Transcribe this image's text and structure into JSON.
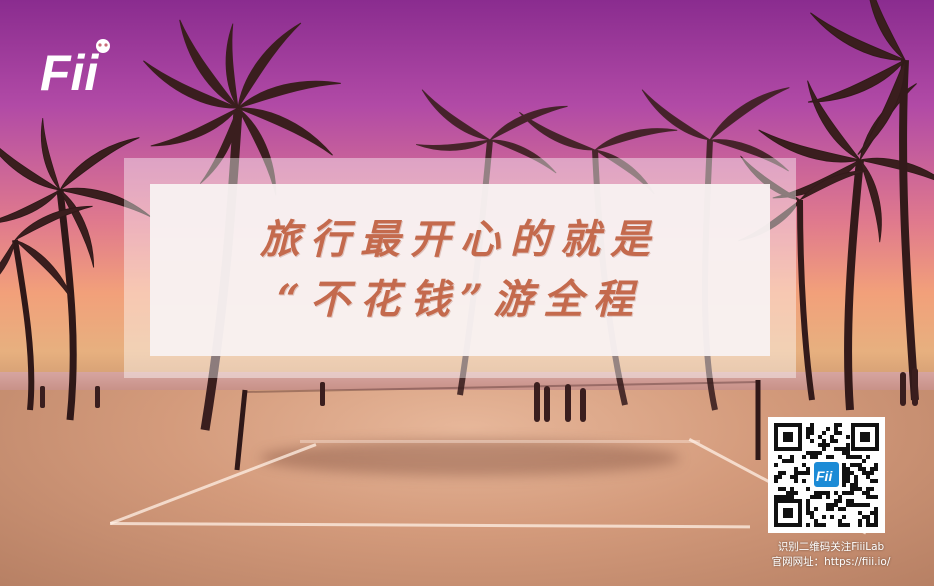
{
  "brand": {
    "logo_text": "Fii"
  },
  "headline": {
    "line1": "旅行最开心的就是",
    "line2": "“不花钱”游全程"
  },
  "qr": {
    "center_logo_text": "Fii",
    "caption_line1": "识别二维码关注FiiiLab",
    "caption_line2": "官网网址：https://fiii.io/"
  },
  "colors": {
    "headline_text": "#c46a4d",
    "sky_top": "#8a2c8f",
    "sky_horizon": "#f2a07a",
    "sand": "#d49b7c"
  }
}
